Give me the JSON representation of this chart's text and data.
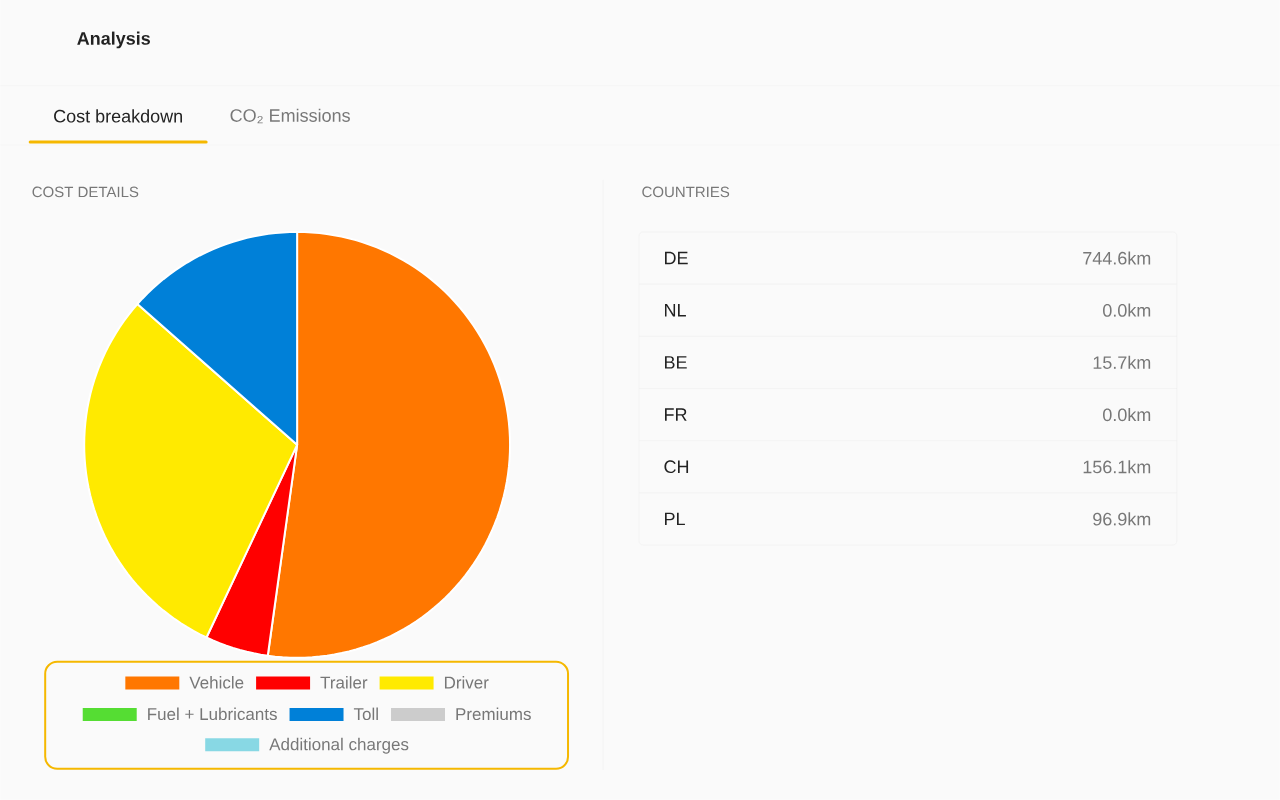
{
  "chart_data": [
    {
      "type": "other",
      "title": "Analysis",
      "annotations": [
        "Cost breakdown",
        "CO₂ Emissions"
      ]
    },
    {
      "type": "pie",
      "title": "COST DETAILS",
      "legend": "bottom",
      "categories": [
        "Vehicle",
        "Trailer",
        "Driver",
        "Fuel + Lubricants",
        "Toll",
        "Premiums",
        "Additional charges"
      ],
      "values": [
        52.2,
        4.8,
        29.5,
        0,
        13.5,
        0,
        0
      ],
      "colors": [
        "#ff7700",
        "#ff0000",
        "#ffea00",
        "#55dd33",
        "#0080d8",
        "#cccccc",
        "#88d8e4"
      ]
    },
    {
      "type": "other",
      "title": "COUNTRIES",
      "categories": [
        "DE",
        "NL",
        "BE",
        "FR",
        "CH",
        "PL"
      ],
      "values": [
        744.6,
        0.0,
        15.7,
        0.0,
        156.1,
        96.9
      ],
      "value_labels": [
        "744.6km",
        "0.0km",
        "15.7km",
        "0.0km",
        "156.1km",
        "96.9km"
      ]
    }
  ]
}
